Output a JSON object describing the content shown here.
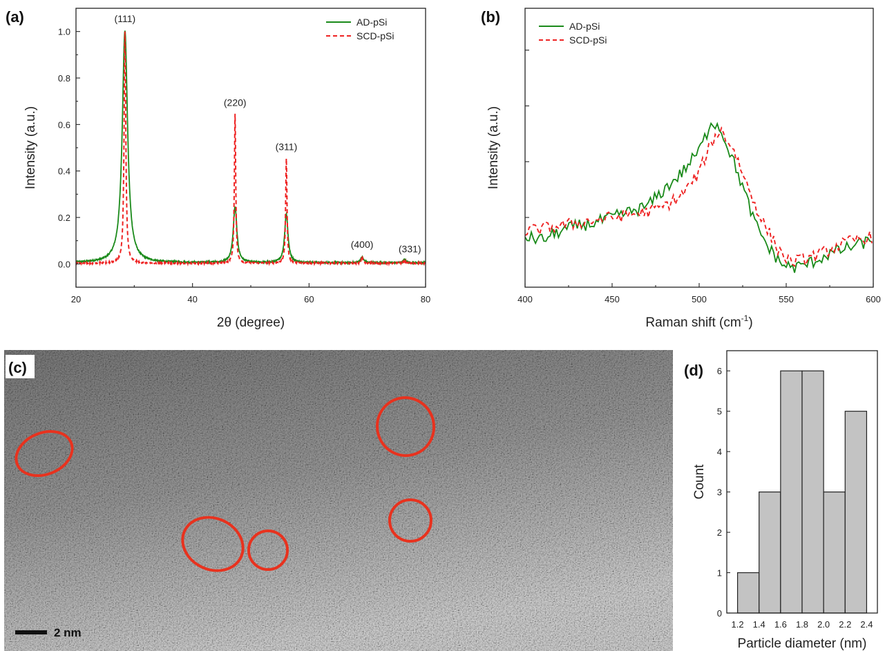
{
  "panels": {
    "a": "(a)",
    "b": "(b)",
    "c": "(c)",
    "d": "(d)"
  },
  "colors": {
    "ad": "#1a8a1a",
    "scd": "#ee2222",
    "hist_fill": "#c3c3c3",
    "circle": "#e8321e"
  },
  "chart_data": [
    {
      "id": "a",
      "type": "line",
      "xlabel": "2θ (degree)",
      "ylabel": "Intensity (a.u.)",
      "xlim": [
        20,
        80
      ],
      "ylim": [
        -0.1,
        1.1
      ],
      "xticks": [
        20,
        40,
        60,
        80
      ],
      "yticks": [
        0.0,
        0.2,
        0.4,
        0.6,
        0.8,
        1.0
      ],
      "ytick_labels": [
        "0.0",
        "0.2",
        "0.4",
        "0.6",
        "0.8",
        "1.0"
      ],
      "legend": "top-right",
      "series": [
        {
          "name": "AD-pSi",
          "style": "solid",
          "baseline": 0.005,
          "peaks": [
            {
              "x": 28.4,
              "height": 1.0,
              "width": 1.1
            },
            {
              "x": 47.3,
              "height": 0.24,
              "width": 0.75
            },
            {
              "x": 56.1,
              "height": 0.21,
              "width": 0.7
            },
            {
              "x": 69.1,
              "height": 0.025,
              "width": 0.6
            },
            {
              "x": 76.4,
              "height": 0.015,
              "width": 0.5
            }
          ]
        },
        {
          "name": "SCD-pSi",
          "style": "dashed",
          "baseline": 0.003,
          "peaks": [
            {
              "x": 28.4,
              "height": 1.0,
              "width": 0.35
            },
            {
              "x": 47.3,
              "height": 0.64,
              "width": 0.28
            },
            {
              "x": 56.1,
              "height": 0.45,
              "width": 0.28
            },
            {
              "x": 69.1,
              "height": 0.03,
              "width": 0.3
            },
            {
              "x": 76.4,
              "height": 0.015,
              "width": 0.3
            }
          ]
        }
      ],
      "annotations": [
        {
          "text": "(111)",
          "x": 28.4,
          "y": 1.04
        },
        {
          "text": "(220)",
          "x": 47.3,
          "y": 0.68
        },
        {
          "text": "(311)",
          "x": 56.1,
          "y": 0.49
        },
        {
          "text": "(400)",
          "x": 69.1,
          "y": 0.07
        },
        {
          "text": "(331)",
          "x": 77.3,
          "y": 0.05
        }
      ]
    },
    {
      "id": "b",
      "type": "line",
      "xlabel": "Raman shift (cm",
      "xlabel_sup": "-1",
      "xlabel_end": ")",
      "ylabel": "Intensity (a.u.)",
      "xlim": [
        400,
        600
      ],
      "ylim": [
        0,
        1
      ],
      "xticks": [
        400,
        450,
        500,
        550,
        600
      ],
      "yticks": [
        0.25,
        0.45,
        0.65,
        0.85
      ],
      "legend": "top-left",
      "series": [
        {
          "name": "AD-pSi",
          "style": "solid",
          "points": [
            [
              400,
              0.18
            ],
            [
              410,
              0.17
            ],
            [
              420,
              0.2
            ],
            [
              430,
              0.22
            ],
            [
              440,
              0.23
            ],
            [
              450,
              0.25
            ],
            [
              460,
              0.27
            ],
            [
              470,
              0.29
            ],
            [
              480,
              0.35
            ],
            [
              490,
              0.41
            ],
            [
              500,
              0.49
            ],
            [
              505,
              0.56
            ],
            [
              507,
              0.6
            ],
            [
              512,
              0.57
            ],
            [
              518,
              0.48
            ],
            [
              525,
              0.36
            ],
            [
              532,
              0.23
            ],
            [
              540,
              0.14
            ],
            [
              548,
              0.08
            ],
            [
              555,
              0.07
            ],
            [
              565,
              0.09
            ],
            [
              575,
              0.12
            ],
            [
              585,
              0.14
            ],
            [
              595,
              0.16
            ],
            [
              600,
              0.17
            ]
          ]
        },
        {
          "name": "SCD-pSi",
          "style": "dashed",
          "points": [
            [
              400,
              0.2
            ],
            [
              410,
              0.21
            ],
            [
              420,
              0.22
            ],
            [
              430,
              0.23
            ],
            [
              440,
              0.24
            ],
            [
              450,
              0.25
            ],
            [
              460,
              0.26
            ],
            [
              470,
              0.27
            ],
            [
              480,
              0.29
            ],
            [
              490,
              0.33
            ],
            [
              500,
              0.41
            ],
            [
              505,
              0.49
            ],
            [
              510,
              0.55
            ],
            [
              513,
              0.56
            ],
            [
              520,
              0.49
            ],
            [
              528,
              0.36
            ],
            [
              536,
              0.24
            ],
            [
              545,
              0.14
            ],
            [
              552,
              0.09
            ],
            [
              560,
              0.1
            ],
            [
              570,
              0.12
            ],
            [
              580,
              0.15
            ],
            [
              590,
              0.17
            ],
            [
              600,
              0.18
            ]
          ]
        }
      ]
    },
    {
      "id": "d",
      "type": "bar",
      "xlabel": "Particle diameter (nm)",
      "ylabel": "Count",
      "bin_width": 0.2,
      "bin_starts": [
        1.2,
        1.4,
        1.6,
        1.8,
        2.0,
        2.2
      ],
      "values": [
        1,
        3,
        6,
        6,
        3,
        5
      ],
      "xlim": [
        1.1,
        2.5
      ],
      "ylim": [
        0,
        6.5
      ],
      "xticks": [
        1.2,
        1.4,
        1.6,
        1.8,
        2.0,
        2.2,
        2.4
      ],
      "xtick_labels": [
        "1.2",
        "1.4",
        "1.6",
        "1.8",
        "2.0",
        "2.2",
        "2.4"
      ],
      "yticks": [
        0,
        1,
        2,
        3,
        4,
        5,
        6
      ]
    }
  ],
  "tem": {
    "scale_bar_label": "2 nm"
  }
}
